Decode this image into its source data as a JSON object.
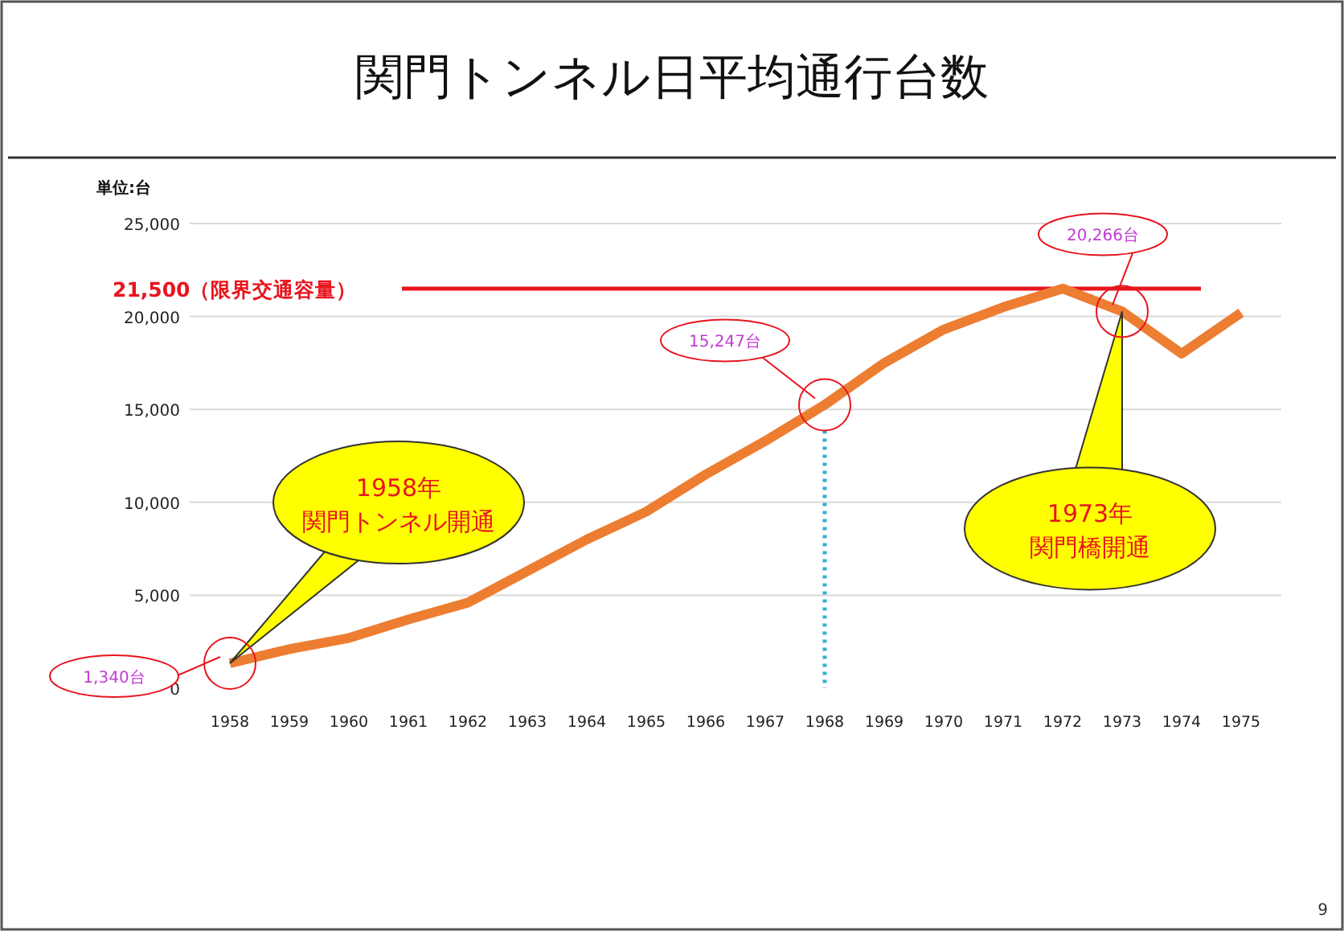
{
  "chart_data": {
    "type": "line",
    "title": "関門トンネル日平均通行台数",
    "ylabel": "単位:台",
    "categories": [
      "1958",
      "1959",
      "1960",
      "1961",
      "1962",
      "1963",
      "1964",
      "1965",
      "1966",
      "1967",
      "1968",
      "1969",
      "1970",
      "1971",
      "1972",
      "1973",
      "1974",
      "1975"
    ],
    "series": [
      {
        "color": "#ed7d31",
        "values": [
          1340,
          2100,
          2700,
          3700,
          4600,
          6300,
          8000,
          9500,
          11500,
          13300,
          15247,
          17500,
          19300,
          20500,
          21500,
          20266,
          18000,
          20200
        ]
      }
    ],
    "ylim": [
      0,
      25000
    ],
    "yticks": [
      {
        "value": 0,
        "label": "0"
      },
      {
        "value": 5000,
        "label": "5,000"
      },
      {
        "value": 10000,
        "label": "10,000"
      },
      {
        "value": 15000,
        "label": "15,000"
      },
      {
        "value": 20000,
        "label": "20,000"
      },
      {
        "value": 25000,
        "label": "25,000"
      }
    ],
    "grid": "y",
    "marker": "none",
    "line_style": "solid",
    "ref_lines": [
      {
        "axis": "y",
        "value": 21500,
        "label": "21,500（限界交通容量）",
        "color": "#e8141e",
        "line_style": "solid"
      },
      {
        "axis": "x",
        "value": "1968",
        "color": "#2fb3d6",
        "line_style": "dotted"
      }
    ],
    "annotations": [
      {
        "text": "1,340台",
        "x": "1958",
        "y": 1340
      },
      {
        "text": "15,247台",
        "x": "1968",
        "y": 15247
      },
      {
        "text": "20,266台",
        "x": "1973",
        "y": 20266
      },
      "1958年",
      "関門トンネル開通",
      "1973年",
      "関門橋開通",
      "9"
    ]
  }
}
